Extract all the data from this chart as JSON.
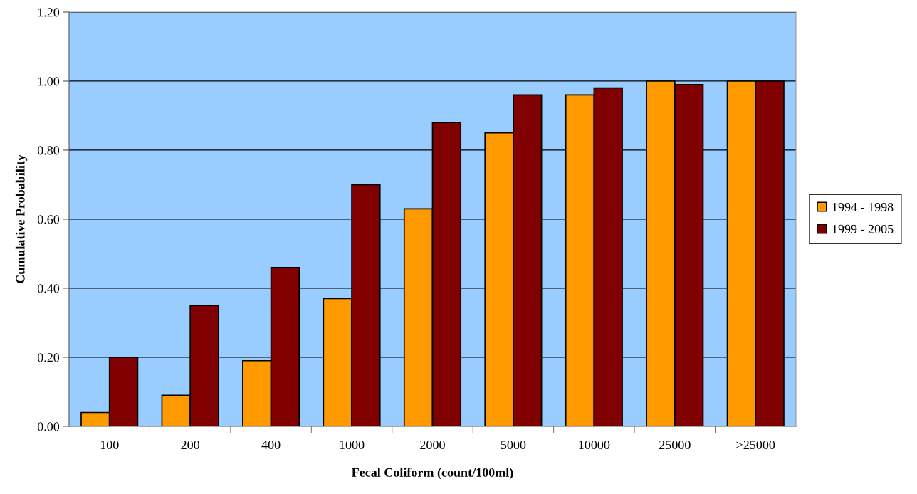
{
  "chart_data": {
    "type": "bar",
    "xlabel": "Fecal Coliform (count/100ml)",
    "ylabel": "Cumulative Probability",
    "categories": [
      "100",
      "200",
      "400",
      "1000",
      "2000",
      "5000",
      "10000",
      "25000",
      ">25000"
    ],
    "series": [
      {
        "name": "1994 - 1998",
        "color": "#ff9900",
        "values": [
          0.04,
          0.09,
          0.19,
          0.37,
          0.63,
          0.85,
          0.96,
          1.0,
          1.0
        ]
      },
      {
        "name": "1999 - 2005",
        "color": "#800000",
        "values": [
          0.2,
          0.35,
          0.46,
          0.7,
          0.88,
          0.96,
          0.98,
          0.99,
          1.0
        ]
      }
    ],
    "ylim": [
      0,
      1.2
    ],
    "yticks": [
      {
        "value": 0,
        "label": "0.00"
      },
      {
        "value": 0.2,
        "label": "0.20"
      },
      {
        "value": 0.4,
        "label": "0.40"
      },
      {
        "value": 0.6,
        "label": "0.60"
      },
      {
        "value": 0.8,
        "label": "0.80"
      },
      {
        "value": 1.0,
        "label": "1.00"
      },
      {
        "value": 1.2,
        "label": "1.20"
      }
    ],
    "grid": "y",
    "legend": "right"
  }
}
